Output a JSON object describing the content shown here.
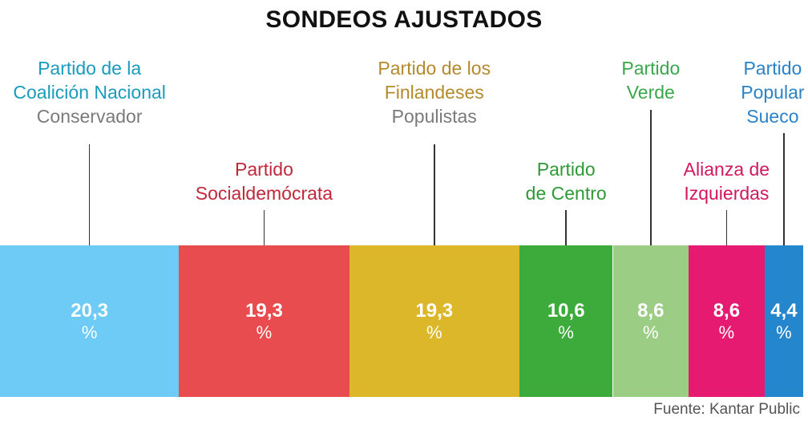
{
  "title": "SONDEOS AJUSTADOS",
  "source": "Fuente: Kantar Public",
  "chart_data": {
    "type": "bar",
    "orientation": "stacked-horizontal",
    "title": "SONDEOS AJUSTADOS",
    "unit": "%",
    "categories": [
      {
        "name": "Partido de la\nCoalición Nacional",
        "subtitle": "Conservador",
        "value": 20.3,
        "display": "20,3",
        "color": "#6ecbf5",
        "label_color": "#1a9bbe"
      },
      {
        "name": "Partido\nSocialdemócrata",
        "subtitle": "",
        "value": 19.3,
        "display": "19,3",
        "color": "#e84c4f",
        "label_color": "#c0283a"
      },
      {
        "name": "Partido de los\nFinlandeses",
        "subtitle": "Populistas",
        "value": 19.3,
        "display": "19,3",
        "color": "#ddb72a",
        "label_color": "#b58a2d"
      },
      {
        "name": "Partido\nde Centro",
        "subtitle": "",
        "value": 10.6,
        "display": "10,6",
        "color": "#3daa3c",
        "label_color": "#2e9a35"
      },
      {
        "name": "Partido\nVerde",
        "subtitle": "",
        "value": 8.6,
        "display": "8,6",
        "color": "#9bcd85",
        "label_color": "#3aa84a"
      },
      {
        "name": "Alianza de\nIzquierdas",
        "subtitle": "",
        "value": 8.6,
        "display": "8,6",
        "color": "#e71a72",
        "label_color": "#d1185f"
      },
      {
        "name": "Partido\nPopular\nSueco",
        "subtitle": "",
        "value": 4.4,
        "display": "4,4",
        "color": "#2486cc",
        "label_color": "#2a83c8"
      }
    ]
  }
}
